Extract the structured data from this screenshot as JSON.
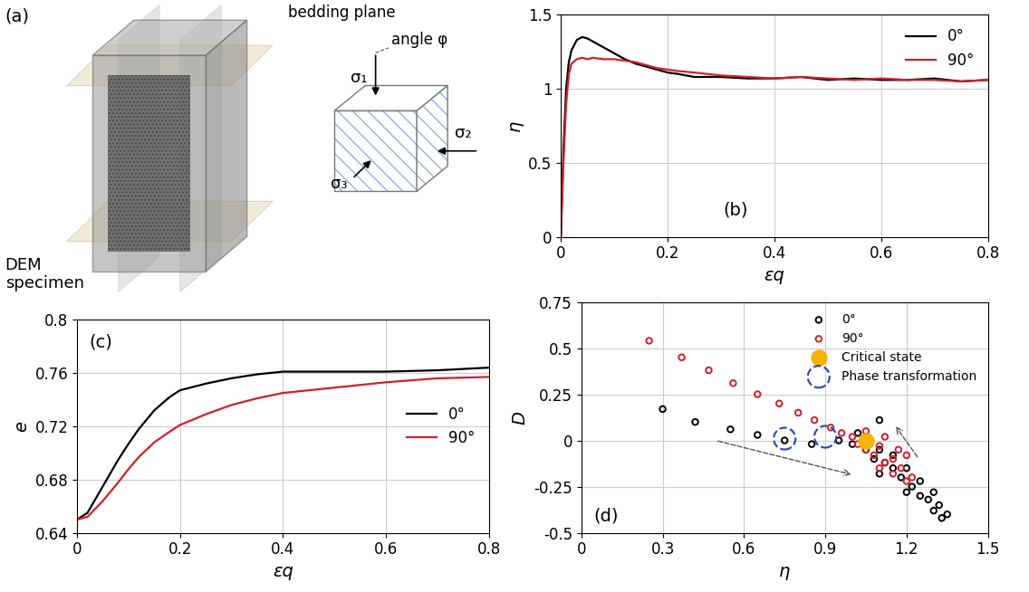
{
  "diagram": {
    "panel_label": "(a)",
    "specimen_label": [
      "DEM",
      "specimen"
    ],
    "bedding_label": "bedding plane",
    "angle_label": "angle φ",
    "sigma1": "σ₁",
    "sigma2": "σ₂",
    "sigma3": "σ₃"
  },
  "chart_data": [
    {
      "type": "line",
      "annotations": [
        "(b)"
      ],
      "x_label": "εq",
      "y_label": "η",
      "xlim": [
        0,
        0.8
      ],
      "xticks": [
        0,
        0.2,
        0.4,
        0.6,
        0.8
      ],
      "ylim": [
        0,
        1.5
      ],
      "yticks": [
        0,
        0.5,
        1,
        1.5
      ],
      "grid": true,
      "legend": "upper right",
      "x": [
        0,
        0.005,
        0.01,
        0.015,
        0.02,
        0.03,
        0.04,
        0.05,
        0.06,
        0.08,
        0.1,
        0.12,
        0.14,
        0.16,
        0.18,
        0.2,
        0.22,
        0.25,
        0.3,
        0.35,
        0.4,
        0.45,
        0.5,
        0.55,
        0.6,
        0.65,
        0.7,
        0.75,
        0.8
      ],
      "series": [
        {
          "name": "0°",
          "color": "#000000",
          "values": [
            0,
            0.6,
            1.0,
            1.18,
            1.26,
            1.33,
            1.35,
            1.34,
            1.32,
            1.28,
            1.24,
            1.2,
            1.17,
            1.15,
            1.13,
            1.11,
            1.1,
            1.08,
            1.08,
            1.07,
            1.07,
            1.08,
            1.06,
            1.07,
            1.06,
            1.06,
            1.07,
            1.05,
            1.06
          ]
        },
        {
          "name": "90°",
          "color": "#d0202a",
          "values": [
            0,
            0.5,
            0.9,
            1.1,
            1.17,
            1.2,
            1.21,
            1.2,
            1.21,
            1.2,
            1.2,
            1.19,
            1.18,
            1.16,
            1.14,
            1.13,
            1.12,
            1.11,
            1.09,
            1.08,
            1.07,
            1.08,
            1.07,
            1.06,
            1.07,
            1.06,
            1.06,
            1.05,
            1.06
          ]
        }
      ]
    },
    {
      "type": "line",
      "annotations": [
        "(c)"
      ],
      "x_label": "εq",
      "y_label": "e",
      "xlim": [
        0,
        0.8
      ],
      "xticks": [
        0,
        0.2,
        0.4,
        0.6,
        0.8
      ],
      "ylim": [
        0.64,
        0.8
      ],
      "yticks": [
        0.64,
        0.68,
        0.72,
        0.76,
        0.8
      ],
      "grid": true,
      "legend": "center right",
      "x": [
        0,
        0.02,
        0.05,
        0.08,
        0.1,
        0.12,
        0.15,
        0.18,
        0.2,
        0.25,
        0.3,
        0.35,
        0.4,
        0.5,
        0.6,
        0.7,
        0.8
      ],
      "series": [
        {
          "name": "0°",
          "color": "#000000",
          "values": [
            0.65,
            0.655,
            0.675,
            0.695,
            0.707,
            0.718,
            0.732,
            0.742,
            0.747,
            0.752,
            0.756,
            0.759,
            0.761,
            0.761,
            0.761,
            0.762,
            0.764
          ]
        },
        {
          "name": "90°",
          "color": "#d0202a",
          "values": [
            0.65,
            0.652,
            0.664,
            0.678,
            0.688,
            0.697,
            0.708,
            0.716,
            0.721,
            0.729,
            0.736,
            0.741,
            0.745,
            0.749,
            0.753,
            0.756,
            0.757
          ]
        }
      ]
    },
    {
      "type": "scatter",
      "annotations": [
        "(d)"
      ],
      "x_label": "η",
      "y_label": "D",
      "xlim": [
        0,
        1.5
      ],
      "xticks": [
        0,
        0.3,
        0.6,
        0.9,
        1.2,
        1.5
      ],
      "ylim": [
        -0.5,
        0.75
      ],
      "yticks": [
        -0.5,
        -0.25,
        0,
        0.25,
        0.5,
        0.75
      ],
      "grid": true,
      "legend": "upper right",
      "series": [
        {
          "name": "0°",
          "color": "#000000",
          "marker": "open_circle",
          "x": [
            0.3,
            0.42,
            0.55,
            0.65,
            0.75,
            0.85,
            0.95,
            1.02,
            1.1,
            1.0,
            1.05,
            1.08,
            1.1,
            1.12,
            1.15,
            1.15,
            1.18,
            1.2,
            1.22,
            1.25,
            1.25,
            1.28,
            1.3,
            1.3,
            1.32,
            1.33,
            1.35,
            1.2,
            1.1,
            1.05
          ],
          "values": [
            0.17,
            0.1,
            0.06,
            0.03,
            0.0,
            -0.02,
            0.0,
            0.04,
            0.11,
            -0.02,
            -0.05,
            -0.1,
            -0.05,
            -0.12,
            -0.15,
            -0.08,
            -0.2,
            -0.15,
            -0.25,
            -0.22,
            -0.3,
            -0.32,
            -0.28,
            -0.38,
            -0.35,
            -0.42,
            -0.4,
            -0.28,
            -0.18,
            0.02
          ]
        },
        {
          "name": "90°",
          "color": "#d0202a",
          "marker": "open_circle",
          "x": [
            0.25,
            0.37,
            0.47,
            0.56,
            0.65,
            0.73,
            0.8,
            0.86,
            0.92,
            0.96,
            1.0,
            1.02,
            1.05,
            1.08,
            1.1,
            1.12,
            1.15,
            1.15,
            1.18,
            1.2,
            1.2,
            1.1,
            1.05,
            1.12,
            1.17,
            1.22
          ],
          "values": [
            0.54,
            0.45,
            0.38,
            0.31,
            0.25,
            0.2,
            0.15,
            0.11,
            0.07,
            0.04,
            0.02,
            -0.02,
            -0.05,
            -0.08,
            -0.03,
            -0.12,
            -0.1,
            -0.18,
            -0.15,
            -0.22,
            -0.08,
            -0.15,
            0.05,
            0.02,
            -0.05,
            -0.2
          ]
        },
        {
          "name": "Critical state",
          "color": "#f5b400",
          "marker": "filled_circle",
          "x": [
            1.05
          ],
          "values": [
            0.0
          ]
        },
        {
          "name": "Phase transformation",
          "color": "#2e4bb5",
          "marker": "open_circle",
          "line_style": "dashed",
          "x": [
            0.75,
            0.9
          ],
          "values": [
            0.01,
            0.02
          ]
        }
      ]
    }
  ]
}
